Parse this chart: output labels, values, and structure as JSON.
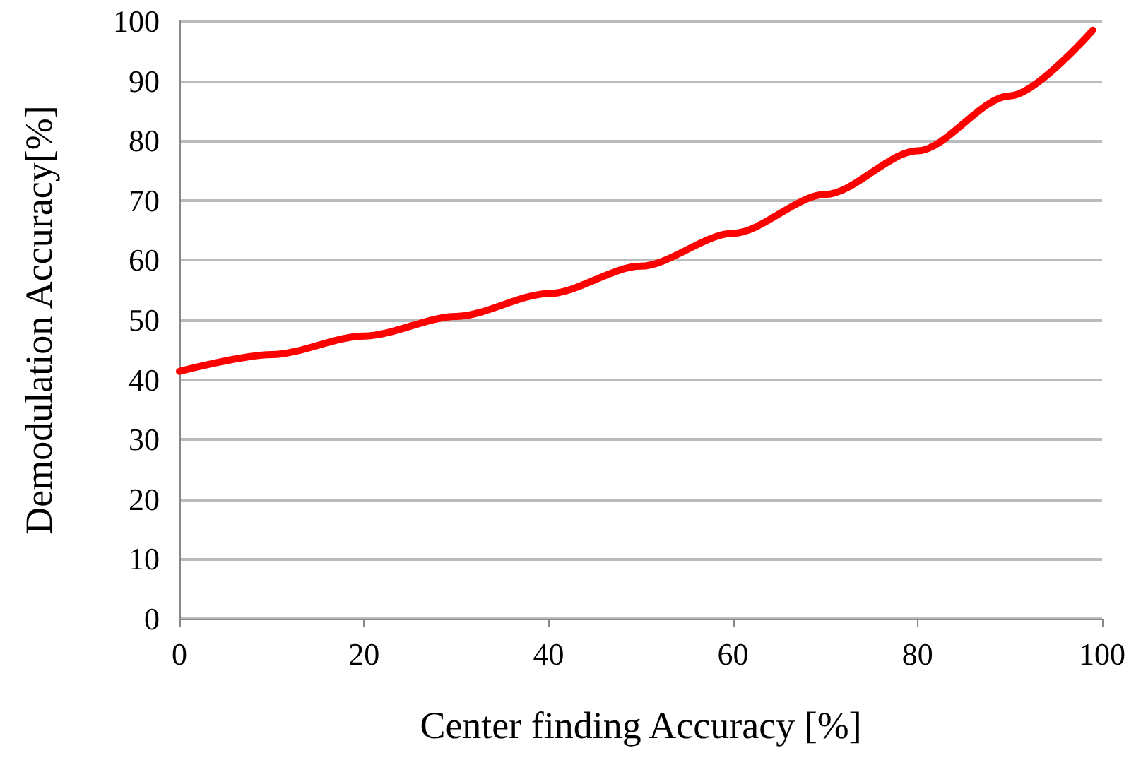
{
  "chart_data": {
    "type": "line",
    "xlabel": "Center finding Accuracy [%]",
    "ylabel": "Demodulation Accuracy[%]",
    "x": [
      0,
      10,
      20,
      30,
      40,
      50,
      60,
      70,
      80,
      90,
      99
    ],
    "series": [
      {
        "color": "#ff0000",
        "values": [
          41.4,
          44.2,
          47.3,
          50.6,
          54.4,
          59,
          64.5,
          71,
          78.3,
          87.5,
          98.5
        ]
      }
    ],
    "xlim": [
      0,
      100
    ],
    "xticks": [
      0,
      20,
      40,
      60,
      80,
      100
    ],
    "ylim": [
      0,
      100
    ],
    "yticks": [
      0,
      10,
      20,
      30,
      40,
      50,
      60,
      70,
      80,
      90,
      100
    ],
    "grid": "y",
    "marker": "none",
    "line_style": "solid"
  }
}
